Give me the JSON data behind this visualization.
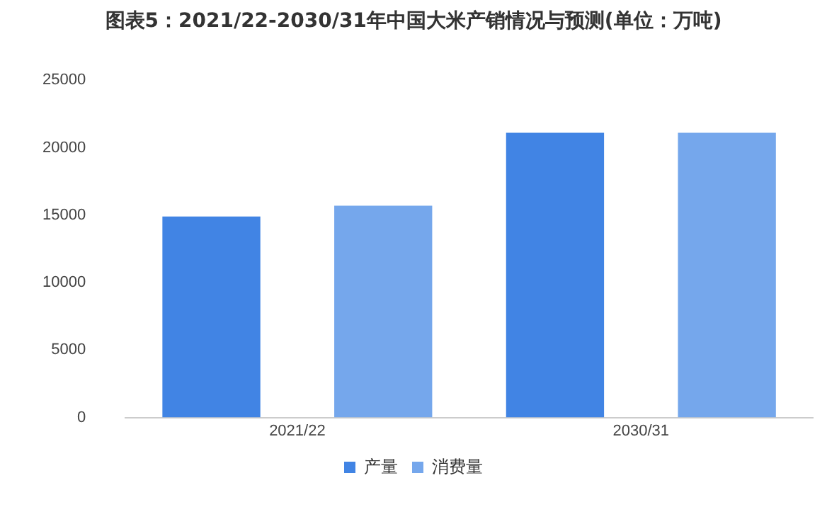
{
  "chart_data": {
    "type": "bar",
    "title": "图表5：2021/22-2030/31年中国大米产销情况与预测(单位：万吨)",
    "categories": [
      "2021/22",
      "2030/31"
    ],
    "series": [
      {
        "name": "产量",
        "color": "#4184e4",
        "values": [
          14900,
          21100
        ]
      },
      {
        "name": "消费量",
        "color": "#75a7ec",
        "values": [
          15700,
          21100
        ]
      }
    ],
    "ylim": [
      0,
      25000
    ],
    "yticks": [
      0,
      5000,
      10000,
      15000,
      20000,
      25000
    ],
    "grid": false,
    "legend": "bottom"
  }
}
